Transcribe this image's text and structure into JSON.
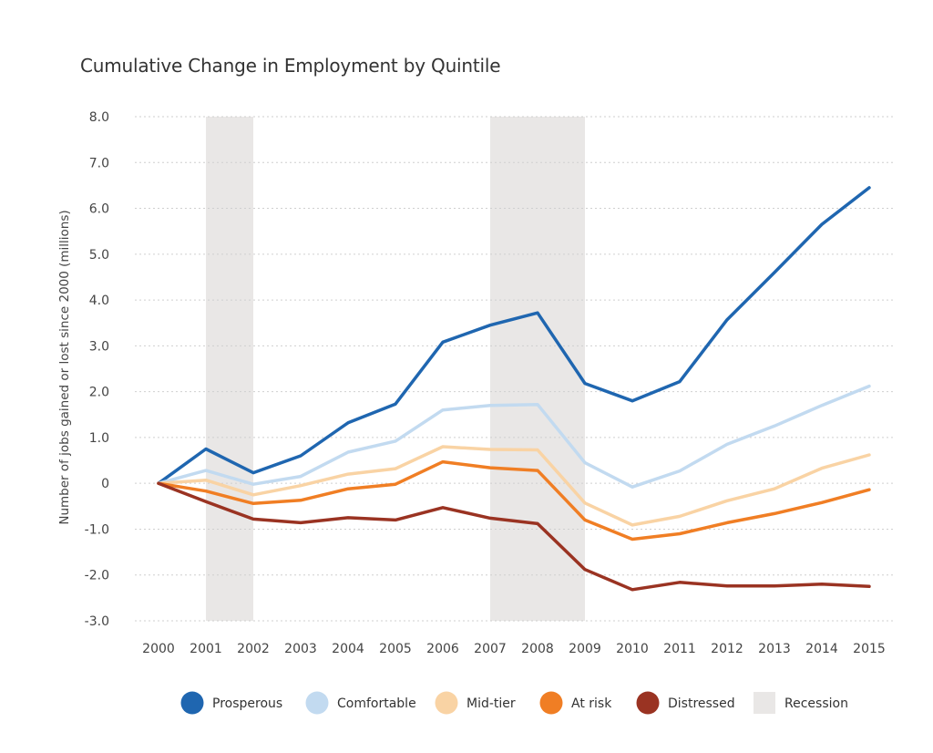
{
  "chart_data": {
    "type": "line",
    "title": "Cumulative Change in Employment by Quintile",
    "ylabel": "Number of jobs gained or lost since 2000 (millions)",
    "xlabel": "",
    "ylim": [
      -3.0,
      8.0
    ],
    "yticks": [
      "8.0",
      "7.0",
      "6.0",
      "5.0",
      "4.0",
      "3.0",
      "2.0",
      "1.0",
      "0",
      "-1.0",
      "-2.0",
      "-3.0"
    ],
    "ytick_values": [
      8,
      7,
      6,
      5,
      4,
      3,
      2,
      1,
      0,
      -1,
      -2,
      -3
    ],
    "x": [
      "2000",
      "2001",
      "2002",
      "2003",
      "2004",
      "2005",
      "2006",
      "2007",
      "2008",
      "2009",
      "2010",
      "2011",
      "2012",
      "2013",
      "2014",
      "2015"
    ],
    "grid": "horizontal dashed",
    "legend_position": "bottom",
    "series": [
      {
        "name": "Prosperous",
        "color": "#1f66b0",
        "values": [
          0,
          0.75,
          0.23,
          0.6,
          1.32,
          1.73,
          3.08,
          3.45,
          3.72,
          2.18,
          1.8,
          2.22,
          3.57,
          4.6,
          5.65,
          6.45
        ]
      },
      {
        "name": "Comfortable",
        "color": "#c2daf0",
        "values": [
          0,
          0.28,
          -0.02,
          0.15,
          0.68,
          0.92,
          1.6,
          1.7,
          1.72,
          0.45,
          -0.08,
          0.27,
          0.85,
          1.25,
          1.7,
          2.12
        ]
      },
      {
        "name": "Mid-tier",
        "color": "#f9d3a4",
        "values": [
          0,
          0.07,
          -0.25,
          -0.05,
          0.2,
          0.32,
          0.8,
          0.74,
          0.73,
          -0.43,
          -0.91,
          -0.72,
          -0.38,
          -0.12,
          0.33,
          0.62
        ]
      },
      {
        "name": "At risk",
        "color": "#f07e24",
        "values": [
          0,
          -0.17,
          -0.44,
          -0.37,
          -0.12,
          -0.02,
          0.47,
          0.34,
          0.28,
          -0.8,
          -1.22,
          -1.1,
          -0.86,
          -0.66,
          -0.42,
          -0.14
        ]
      },
      {
        "name": "Distressed",
        "color": "#9a3322",
        "values": [
          0,
          -0.4,
          -0.78,
          -0.86,
          -0.75,
          -0.8,
          -0.53,
          -0.76,
          -0.88,
          -1.88,
          -2.32,
          -2.16,
          -2.24,
          -2.24,
          -2.2,
          -2.25
        ]
      }
    ],
    "recessions": [
      {
        "start": 2001,
        "end": 2002
      },
      {
        "start": 2007,
        "end": 2009
      }
    ],
    "recession_label": "Recession",
    "recession_color": "#e9e7e6"
  }
}
